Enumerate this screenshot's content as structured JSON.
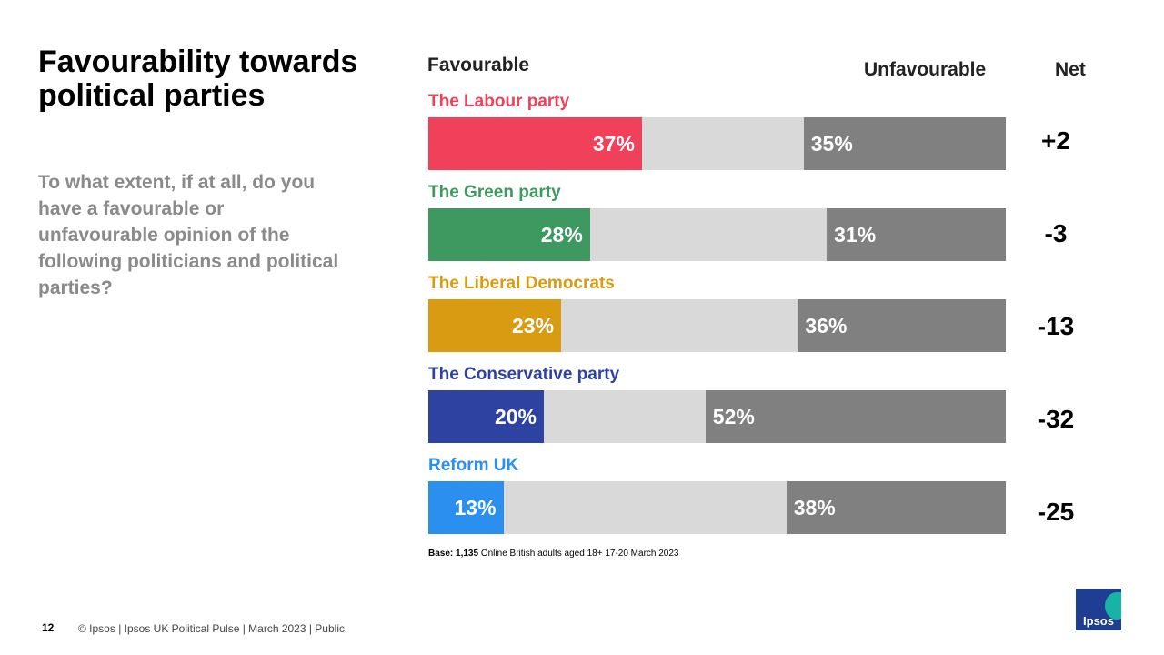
{
  "title": "Favourability towards political parties",
  "subtitle": "To what extent, if at all, do you have a favourable or unfavourable opinion of the following politicians and political parties?",
  "headers": {
    "favourable": "Favourable",
    "unfavourable": "Unfavourable",
    "net": "Net"
  },
  "base": {
    "label": "Base:",
    "count": "1,135",
    "text": "Online British adults aged 18+ 17-20 March 2023"
  },
  "footer": {
    "page": "12",
    "text": "© Ipsos |  Ipsos UK Political Pulse | March 2023 | Public"
  },
  "logo": {
    "text": "Ipsos"
  },
  "chart_data": {
    "type": "bar",
    "orientation": "horizontal-stacked",
    "series": [
      {
        "name": "Favourable",
        "values": [
          37,
          28,
          23,
          20,
          13
        ]
      },
      {
        "name": "Unfavourable",
        "values": [
          35,
          31,
          36,
          52,
          38
        ]
      }
    ],
    "categories": [
      "The Labour party",
      "The Green party",
      "The Liberal Democrats",
      "The Conservative party",
      "Reform UK"
    ],
    "bars": [
      {
        "party": "The Labour party",
        "favourable": 37,
        "unfavourable": 35,
        "fav_label": "37%",
        "unfav_label": "35%",
        "net": "+2",
        "color": "#f0405a"
      },
      {
        "party": "The Green party",
        "favourable": 28,
        "unfavourable": 31,
        "fav_label": "28%",
        "unfav_label": "31%",
        "net": "-3",
        "color": "#3e9960"
      },
      {
        "party": "The Liberal Democrats",
        "favourable": 23,
        "unfavourable": 36,
        "fav_label": "23%",
        "unfav_label": "36%",
        "net": "-13",
        "color": "#d99b12"
      },
      {
        "party": "The Conservative party",
        "favourable": 20,
        "unfavourable": 52,
        "fav_label": "20%",
        "unfav_label": "52%",
        "net": "-32",
        "color": "#2e43a1"
      },
      {
        "party": "Reform UK",
        "favourable": 13,
        "unfavourable": 38,
        "fav_label": "13%",
        "unfav_label": "38%",
        "net": "-25",
        "color": "#2b8ff0"
      }
    ],
    "xlim": [
      0,
      100
    ],
    "unit": "%"
  }
}
